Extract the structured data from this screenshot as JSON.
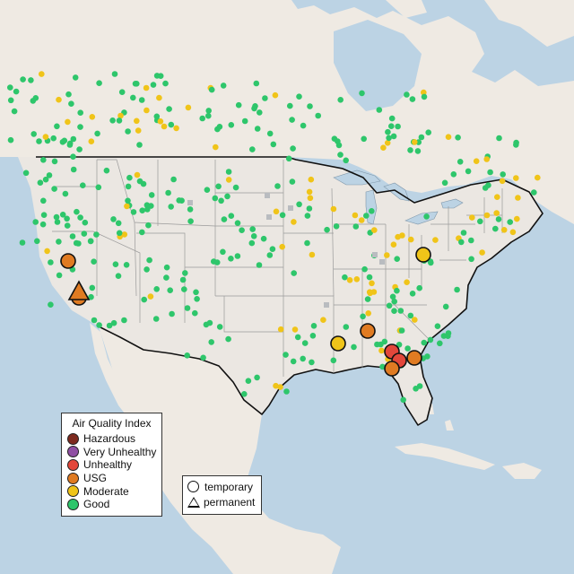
{
  "legend": {
    "title": "Air Quality Index",
    "categories": [
      {
        "label": "Hazardous",
        "color": "#7e2a1f"
      },
      {
        "label": "Very Unhealthy",
        "color": "#8f4fa3"
      },
      {
        "label": "Unhealthy",
        "color": "#e3473b"
      },
      {
        "label": "USG",
        "color": "#e07b22"
      },
      {
        "label": "Moderate",
        "color": "#f0c419"
      },
      {
        "label": "Good",
        "color": "#2ec66b"
      }
    ]
  },
  "monitor_types": [
    {
      "label": "temporary",
      "symbol": "circle"
    },
    {
      "label": "permanent",
      "symbol": "triangle"
    }
  ],
  "colors": {
    "water": "#bcd3e4",
    "land": "#efeae3",
    "us_land": "#ebe7e2",
    "border": "#111111",
    "state_line": "#9a9a9a",
    "no_data": "#b9bcc0"
  }
}
